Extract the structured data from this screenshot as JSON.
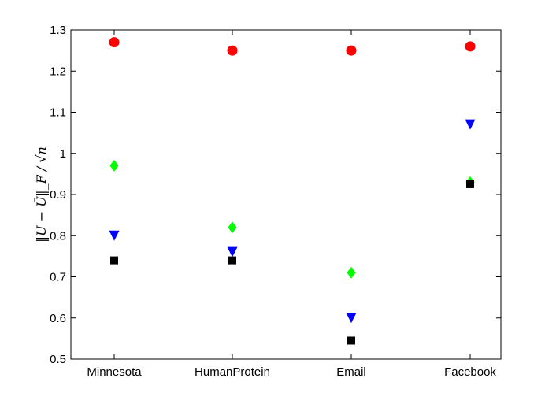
{
  "chart_data": {
    "type": "scatter",
    "title": "",
    "xlabel": "",
    "ylabel": "‖U − Ū‖_F / √n",
    "categories": [
      "Minnesota",
      "HumanProtein",
      "Email",
      "Facebook"
    ],
    "ylim": [
      0.5,
      1.3
    ],
    "yticks": [
      "0.5",
      "0.6",
      "0.7",
      "0.8",
      "0.9",
      "1",
      "1.1",
      "1.2",
      "1.3"
    ],
    "grid": false,
    "series": [
      {
        "marker": "circle",
        "color": "#ff0000",
        "values": [
          1.27,
          1.25,
          1.25,
          1.26
        ]
      },
      {
        "marker": "triangle-down",
        "color": "#0000ff",
        "values": [
          0.8,
          0.76,
          0.6,
          1.07
        ]
      },
      {
        "marker": "diamond",
        "color": "#00ff00",
        "values": [
          0.97,
          0.82,
          0.71,
          0.93
        ]
      },
      {
        "marker": "square",
        "color": "#000000",
        "values": [
          0.74,
          0.74,
          0.545,
          0.925
        ]
      }
    ]
  }
}
